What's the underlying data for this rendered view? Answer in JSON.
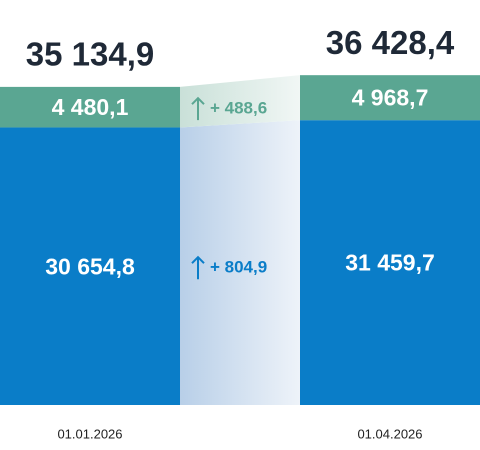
{
  "chart_data": {
    "type": "bar",
    "stacked": true,
    "categories": [
      "01.01.2026",
      "01.04.2026"
    ],
    "series": [
      {
        "color": "#0a7dc8",
        "values": [
          30654.8,
          31459.7
        ],
        "value_labels": [
          "30 654,8",
          "31 459,7"
        ]
      },
      {
        "color": "#5aa692",
        "values": [
          4480.1,
          4968.7
        ],
        "value_labels": [
          "4 480,1",
          "4 968,7"
        ]
      }
    ],
    "totals": {
      "values": [
        35134.9,
        36428.4
      ],
      "value_labels": [
        "35 134,9",
        "36 428,4"
      ]
    },
    "changes": {
      "values": [
        804.9,
        488.6
      ],
      "value_labels": [
        "+ 804,9",
        "+ 488,6"
      ]
    },
    "ylim": [
      0,
      37000
    ]
  }
}
